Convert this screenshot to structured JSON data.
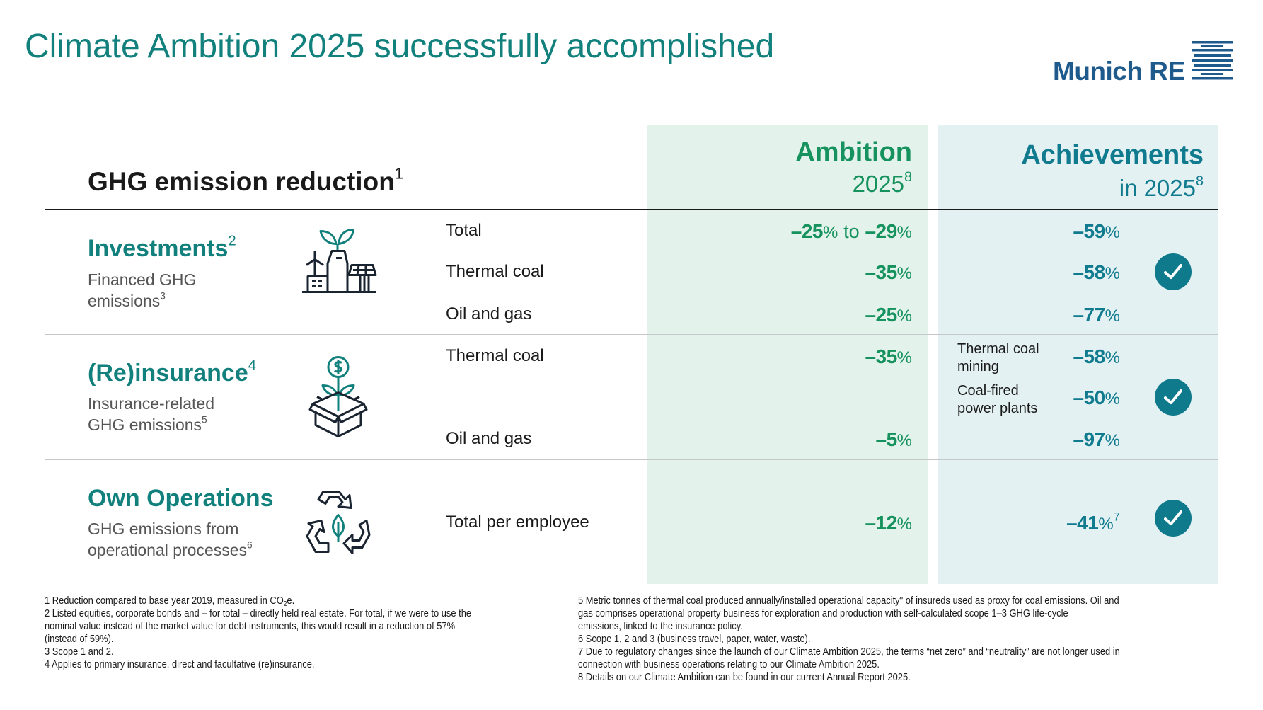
{
  "title": "Climate Ambition 2025 successfully accomplished",
  "logo": {
    "text": "Munich RE",
    "color": "#1f5a8c"
  },
  "colors": {
    "teal": "#12807c",
    "ambition_green": "#15925e",
    "achievement_teal": "#107b8e",
    "ambition_bg": "#e3f2ea",
    "achievement_bg": "#e4f1f3"
  },
  "table_heading": {
    "text": "GHG emission reduction",
    "sup": "1"
  },
  "columns": {
    "ambition": {
      "title": "Ambition",
      "subtitle": "2025",
      "sup": "8"
    },
    "achievements": {
      "title": "Achievements",
      "subtitle": "in 2025",
      "sup": "8"
    }
  },
  "sections": [
    {
      "heading": "Investments",
      "heading_sup": "2",
      "sub_line1": "Financed GHG",
      "sub_line2": "emissions",
      "sub_sup": "3",
      "icon": "factory-plant-solar-icon",
      "rows": [
        {
          "label": "Total",
          "ambition_from": "–25",
          "ambition_connector": "to",
          "ambition_to": "–29",
          "unit": "%",
          "achievement": "–59"
        },
        {
          "label": "Thermal coal",
          "ambition": "–35",
          "unit": "%",
          "achievement": "–58",
          "accomplished": true
        },
        {
          "label": "Oil and gas",
          "ambition": "–25",
          "unit": "%",
          "achievement": "–77"
        }
      ]
    },
    {
      "heading": "(Re)insurance",
      "heading_sup": "4",
      "sub_line1": "Insurance-related",
      "sub_line2": "GHG emissions",
      "sub_sup": "5",
      "icon": "money-plant-box-icon",
      "rows": [
        {
          "label": "Thermal coal",
          "ambition": "–35",
          "unit": "%",
          "achievements": [
            {
              "label_line1": "Thermal coal",
              "label_line2": "mining",
              "value": "–58"
            },
            {
              "label_line1": "Coal-fired",
              "label_line2": "power plants",
              "value": "–50"
            }
          ],
          "accomplished": true
        },
        {
          "label": "Oil and gas",
          "ambition": "–5",
          "unit": "%",
          "achievement": "–97"
        }
      ]
    },
    {
      "heading": "Own Operations",
      "heading_sup": "",
      "sub_line1": "GHG emissions from",
      "sub_line2": "operational processes",
      "sub_sup": "6",
      "icon": "recycle-leaf-icon",
      "rows": [
        {
          "label": "Total per employee",
          "ambition": "–12",
          "unit": "%",
          "achievement": "–41",
          "achievement_sup": "7",
          "accomplished": true
        }
      ]
    }
  ],
  "footnotes_left": [
    {
      "pre": "1 Reduction compared to base year 2019, measured in CO",
      "sub": "2",
      "post": "e."
    },
    {
      "text": "2 Listed equities, corporate bonds and – for total – directly held real estate. For total, if we were to use the"
    },
    {
      "text": "nominal value instead of the market value for debt instruments, this would result in a reduction of 57%"
    },
    {
      "text": "(instead of 59%)."
    },
    {
      "text": "3 Scope 1 and 2."
    },
    {
      "text": "4 Applies to primary insurance, direct and facultative (re)insurance."
    }
  ],
  "footnotes_right": [
    "5 Metric tonnes of thermal coal produced annually/installed operational capacity\" of insureds used as proxy for coal emissions. Oil and",
    "gas comprises operational property business for exploration and production with self-calculated scope 1–3 GHG life-cycle",
    "emissions, linked to the insurance policy.",
    "6 Scope 1, 2 and 3 (business travel, paper, water, waste).",
    "7 Due to regulatory changes since the launch of our Climate Ambition 2025, the terms “net zero” and “neutrality” are not longer used in",
    "connection with business operations relating to our Climate Ambition 2025.",
    "8 Details on our Climate Ambition can be found in our current Annual Report 2025."
  ]
}
